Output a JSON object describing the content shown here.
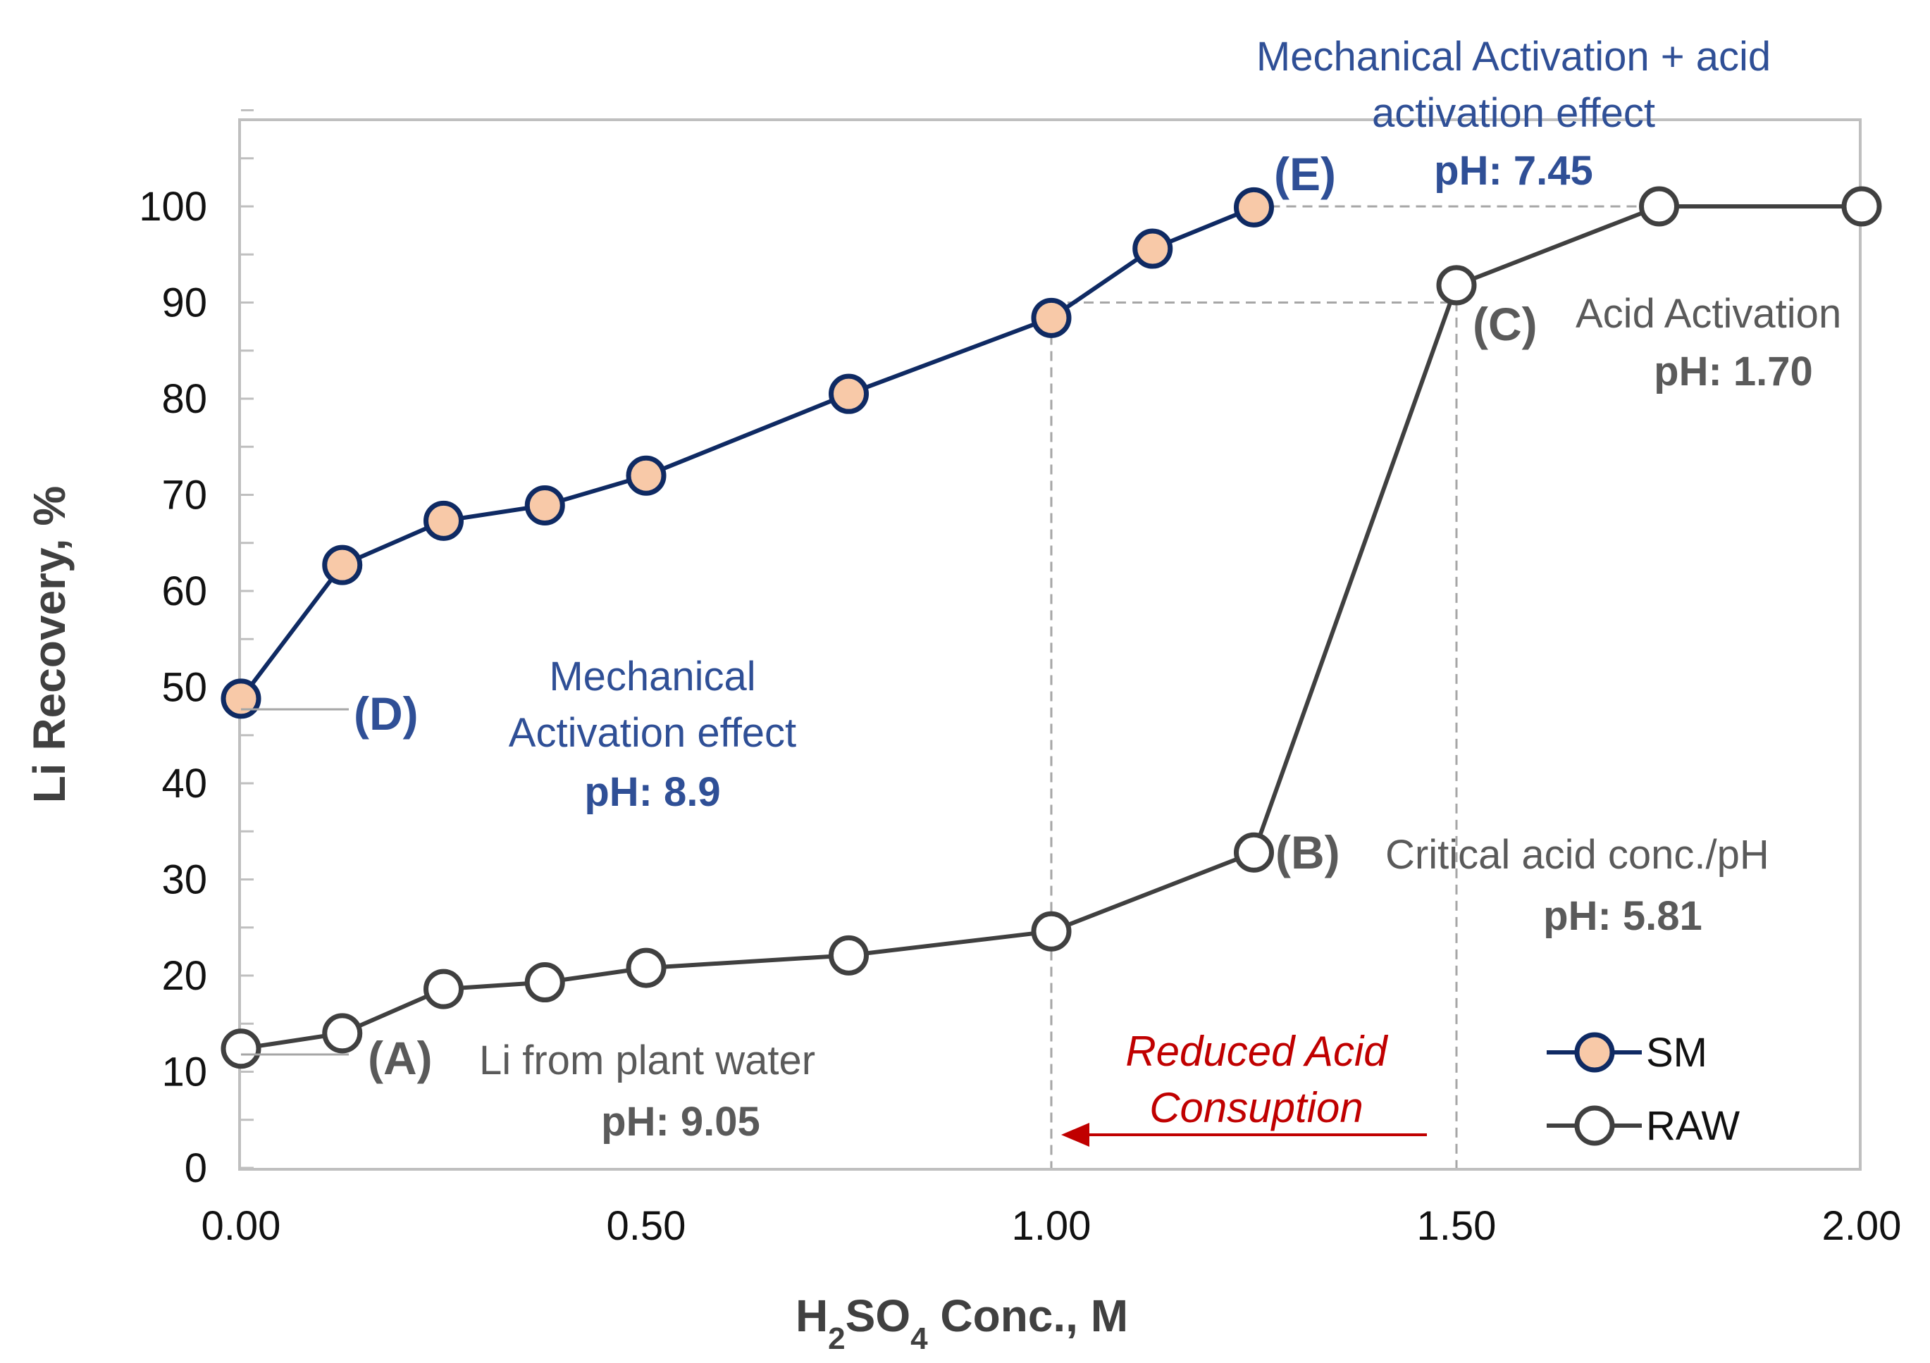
{
  "chart_data": {
    "type": "line",
    "xlabel": "H2SO4 Conc., M",
    "ylabel": "Li Recovery, %",
    "xlim": [
      0,
      2
    ],
    "ylim": [
      0,
      110
    ],
    "x_ticks": [
      "0.00",
      "0.50",
      "1.00",
      "1.50",
      "2.00"
    ],
    "y_ticks": [
      "0",
      "10",
      "20",
      "30",
      "40",
      "50",
      "60",
      "70",
      "80",
      "90",
      "100"
    ],
    "series": [
      {
        "name": "SM",
        "line_color": "#0f2a63",
        "marker_fill": "#f8c9a8",
        "x": [
          0,
          0.125,
          0.25,
          0.375,
          0.5,
          0.75,
          1.0,
          1.125,
          1.25
        ],
        "y": [
          48.8,
          62.7,
          67.3,
          68.9,
          72.0,
          80.5,
          88.4,
          95.6,
          99.9
        ]
      },
      {
        "name": "RAW",
        "line_color": "#404040",
        "marker_fill": "#ffffff",
        "x": [
          0,
          0.125,
          0.25,
          0.375,
          0.5,
          0.75,
          1.0,
          1.25,
          1.5,
          1.75,
          2.0
        ],
        "y": [
          12.4,
          14.0,
          18.6,
          19.3,
          20.8,
          22.1,
          24.6,
          32.8,
          91.8,
          100,
          100
        ]
      }
    ],
    "annotations": {
      "A": {
        "label": "(A)",
        "text": "Li from plant water",
        "ph": "pH: 9.05"
      },
      "B": {
        "label": "(B)",
        "text": "Critical acid conc./pH",
        "ph": "pH: 5.81"
      },
      "C": {
        "label": "(C)",
        "text": "Acid Activation",
        "ph": "pH: 1.70"
      },
      "D": {
        "label": "(D)",
        "text_line1": "Mechanical",
        "text_line2": "Activation effect",
        "ph": "pH: 8.9"
      },
      "E": {
        "label": "(E)",
        "text_line1": "Mechanical  Activation + acid",
        "text_line2": "activation effect",
        "ph": "pH: 7.45"
      },
      "reduced": {
        "line1": "Reduced Acid",
        "line2": "Consuption"
      }
    },
    "legend": {
      "position": "bottom-right",
      "items": [
        "SM",
        "RAW"
      ]
    },
    "colors": {
      "sm_line": "#0f2a63",
      "raw_line": "#404040",
      "blue_text": "#2f4f96",
      "gray_text": "#5a5a5a",
      "red": "#c00000"
    }
  }
}
